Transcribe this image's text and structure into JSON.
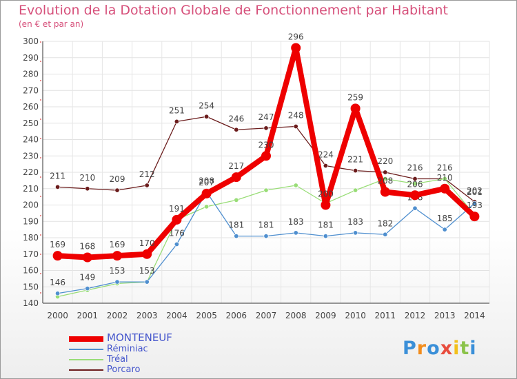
{
  "header": {
    "title": "Evolution de la Dotation Globale de Fonctionnement par Habitant",
    "subtitle": "(en € et par an)"
  },
  "chart_data": {
    "type": "line",
    "title": "Evolution de la Dotation Globale de Fonctionnement par Habitant",
    "subtitle": "(en € et par an)",
    "xlabel": "",
    "ylabel": "",
    "ylim": [
      140,
      300
    ],
    "ytick_step": 10,
    "grid": true,
    "x": [
      "2000",
      "2001",
      "2002",
      "2003",
      "2004",
      "2005",
      "2006",
      "2007",
      "2008",
      "2009",
      "2010",
      "2011",
      "2012",
      "2013",
      "2014"
    ],
    "series": [
      {
        "name": "Porcaro",
        "color": "#6b1c1c",
        "labels_shown": true,
        "values": [
          211,
          210,
          209,
          212,
          251,
          254,
          246,
          247,
          248,
          224,
          221,
          220,
          216,
          216,
          202
        ]
      },
      {
        "name": "Tréal",
        "color": "#99dd77",
        "labels_shown": false,
        "values": [
          144,
          148,
          152,
          153,
          191,
          199,
          203,
          209,
          212,
          201,
          209,
          216,
          213,
          216,
          194
        ]
      },
      {
        "name": "Réminiac",
        "color": "#4f8fcf",
        "labels_shown": true,
        "values": [
          146,
          149,
          153,
          153,
          176,
          208,
          181,
          181,
          183,
          181,
          183,
          182,
          198,
          185,
          201
        ]
      },
      {
        "name": "MONTENEUF",
        "color": "#ee0000",
        "labels_shown": true,
        "values": [
          169,
          168,
          169,
          170,
          191,
          207,
          217,
          230,
          296,
          200,
          259,
          208,
          206,
          210,
          193
        ]
      }
    ]
  },
  "legend": {
    "items": [
      {
        "label": "MONTENEUF",
        "color": "#ee0000"
      },
      {
        "label": "Réminiac",
        "color": "#4f8fcf"
      },
      {
        "label": "Tréal",
        "color": "#99dd77"
      },
      {
        "label": "Porcaro",
        "color": "#6b1c1c"
      }
    ]
  },
  "logo": {
    "text": "Proxiti"
  }
}
